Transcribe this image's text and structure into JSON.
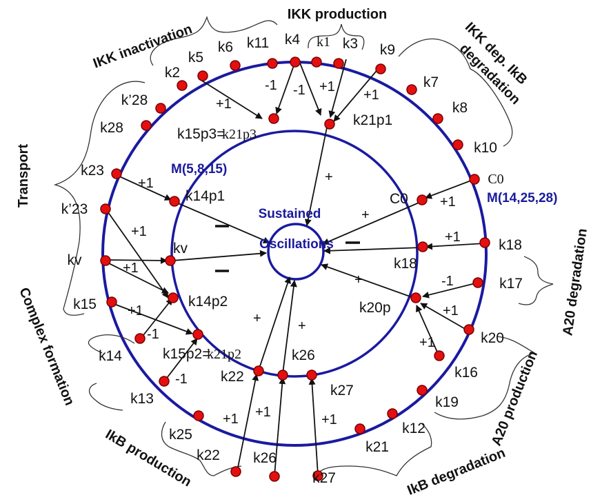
{
  "modules": {
    "inner": "M(5,8,15)",
    "outer": "M(14,25,28)"
  },
  "center": {
    "line1": "Sustained",
    "line2": "Oscillations"
  },
  "groups": {
    "ikk_inactivation": "IKK inactivation",
    "ikk_production": "IKK production",
    "ikk_degradation_1": "IKK dep. IkB",
    "ikk_degradation_2": "degradation",
    "transport": "Transport",
    "complex_formation": "Complex formation",
    "ikb_production": "IkB production",
    "ikb_degradation": "IkB degradation",
    "a20_production": "A20 production",
    "a20_degradation": "A20 degradation"
  },
  "outer_labels": {
    "k1": "k1",
    "k3": "k3",
    "k4": "k4",
    "k11": "k11",
    "k6": "k6",
    "k5": "k5",
    "k2": "k2",
    "k28p": "k’28",
    "k28": "k28",
    "k23": "k23",
    "k23p": "k’23",
    "kv": "kv",
    "k15": "k15",
    "k14": "k14",
    "k13": "k13",
    "k25": "k25",
    "k22": "k22",
    "k26": "k26",
    "k27": "k27",
    "k21": "k21",
    "k12": "k12",
    "k19": "k19",
    "k16": "k16",
    "k20": "k20",
    "k17": "k17",
    "k18": "k18",
    "c0": "C0",
    "k10": "k10",
    "k8": "k8",
    "k7": "k7",
    "k9": "k9"
  },
  "inner_labels": {
    "k21p1": "k21p1",
    "k15p3_a": "k15p3=",
    "k15p3_b": "k21p3",
    "k14p1": "k14p1",
    "kv": "kv",
    "k14p2": "k14p2",
    "k15p2_a": "k15p2=",
    "k15p2_b": "k21p2",
    "k22": "k22",
    "k26": "k26",
    "k27": "k27",
    "k20p": "k20p",
    "k18": "k18",
    "c0": "C0"
  },
  "edge_labels": {
    "k5": "+1",
    "k4a": "-1",
    "k4b": "-1",
    "k3": "+1",
    "k9": "+1",
    "c0": "+1",
    "k18": "+1",
    "k17": "-1",
    "k20": "+1",
    "k16": "+1",
    "k23": "+1",
    "k23p": "+1",
    "kv": "+1",
    "k15": "+1",
    "k14": "-1",
    "k13": "-1",
    "k22": "+1",
    "k26": "+1",
    "k27": "+1"
  },
  "center_signs": {
    "k21p1": "+",
    "c0": "+",
    "k18": "—",
    "k20p": "+",
    "k14p1": "—",
    "kv": "—",
    "k22": "+",
    "k26": "+"
  },
  "colors": {
    "ring": "#1a1aa0",
    "node": "#e41010",
    "module_text": "#1a1a9c"
  }
}
